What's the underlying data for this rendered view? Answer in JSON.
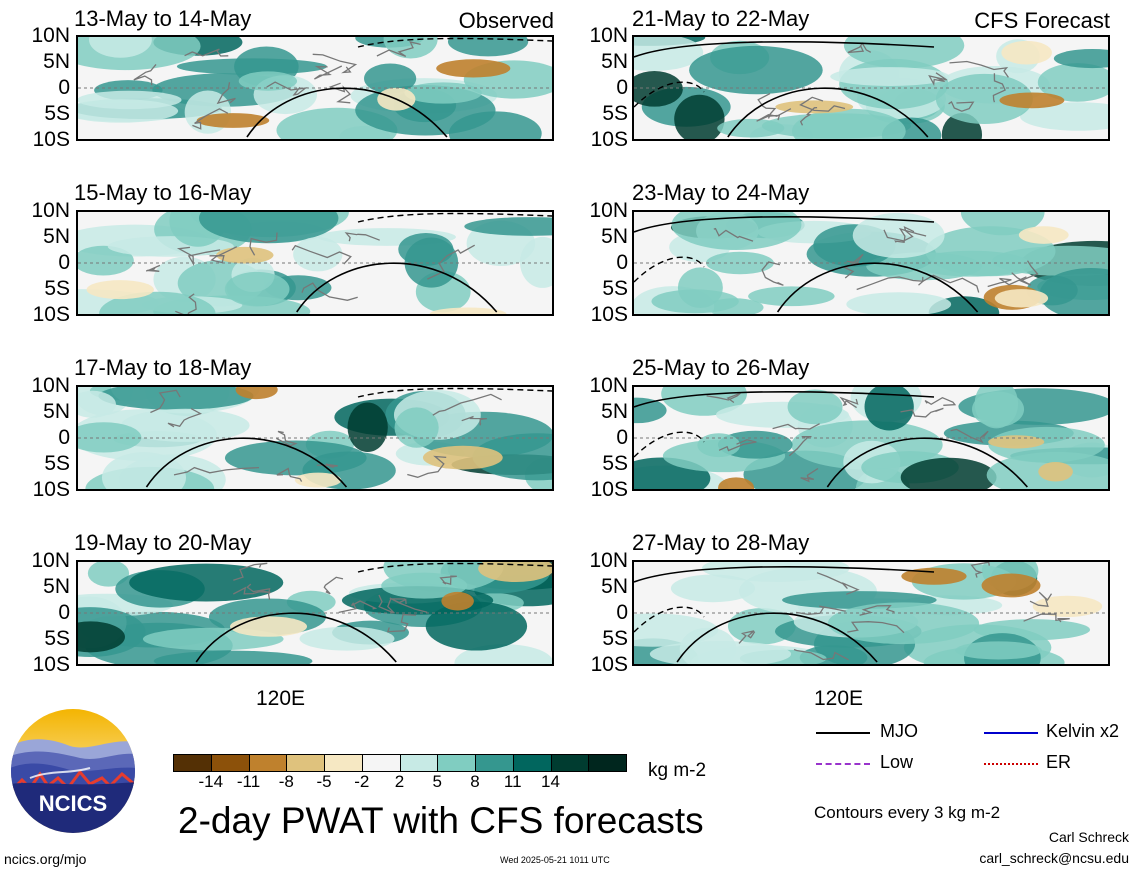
{
  "panels": [
    {
      "title": "13-May to 14-May",
      "note": "Observed"
    },
    {
      "title": "21-May to 22-May",
      "note": "CFS Forecast"
    },
    {
      "title": "15-May to 16-May",
      "note": ""
    },
    {
      "title": "23-May to 24-May",
      "note": ""
    },
    {
      "title": "17-May to 18-May",
      "note": ""
    },
    {
      "title": "25-May to 26-May",
      "note": ""
    },
    {
      "title": "19-May to 20-May",
      "note": ""
    },
    {
      "title": "27-May to 28-May",
      "note": ""
    }
  ],
  "lat_labels": [
    "10N",
    "5N",
    "0",
    "5S",
    "10S"
  ],
  "lon_label": "120E",
  "colorbar": {
    "colors": [
      "#543005",
      "#8c510a",
      "#bf812d",
      "#dfc27d",
      "#f6e8c3",
      "#f5f5f5",
      "#c7eae5",
      "#80cdc1",
      "#35978f",
      "#01665e",
      "#003c30",
      "#00261e"
    ],
    "labels": [
      "-14",
      "-11",
      "-8",
      "-5",
      "-2",
      "2",
      "5",
      "8",
      "11",
      "14"
    ],
    "units": "kg m-2"
  },
  "main_title": "2-day PWAT with CFS forecasts",
  "legend": {
    "mjo": "MJO",
    "kelvin": "Kelvin x2",
    "low": "Low",
    "er": "ER",
    "colors": {
      "mjo": "#000000",
      "kelvin": "#0000cc",
      "low": "#9933cc",
      "er": "#cc0000"
    }
  },
  "contour_note": "Contours every 3 kg m-2",
  "logo_text": "NCICS",
  "footer": {
    "url": "ncics.org/mjo",
    "timestamp": "Wed 2025-05-21 1011 UTC",
    "author": "Carl Schreck",
    "email": "carl_schreck@ncsu.edu"
  }
}
